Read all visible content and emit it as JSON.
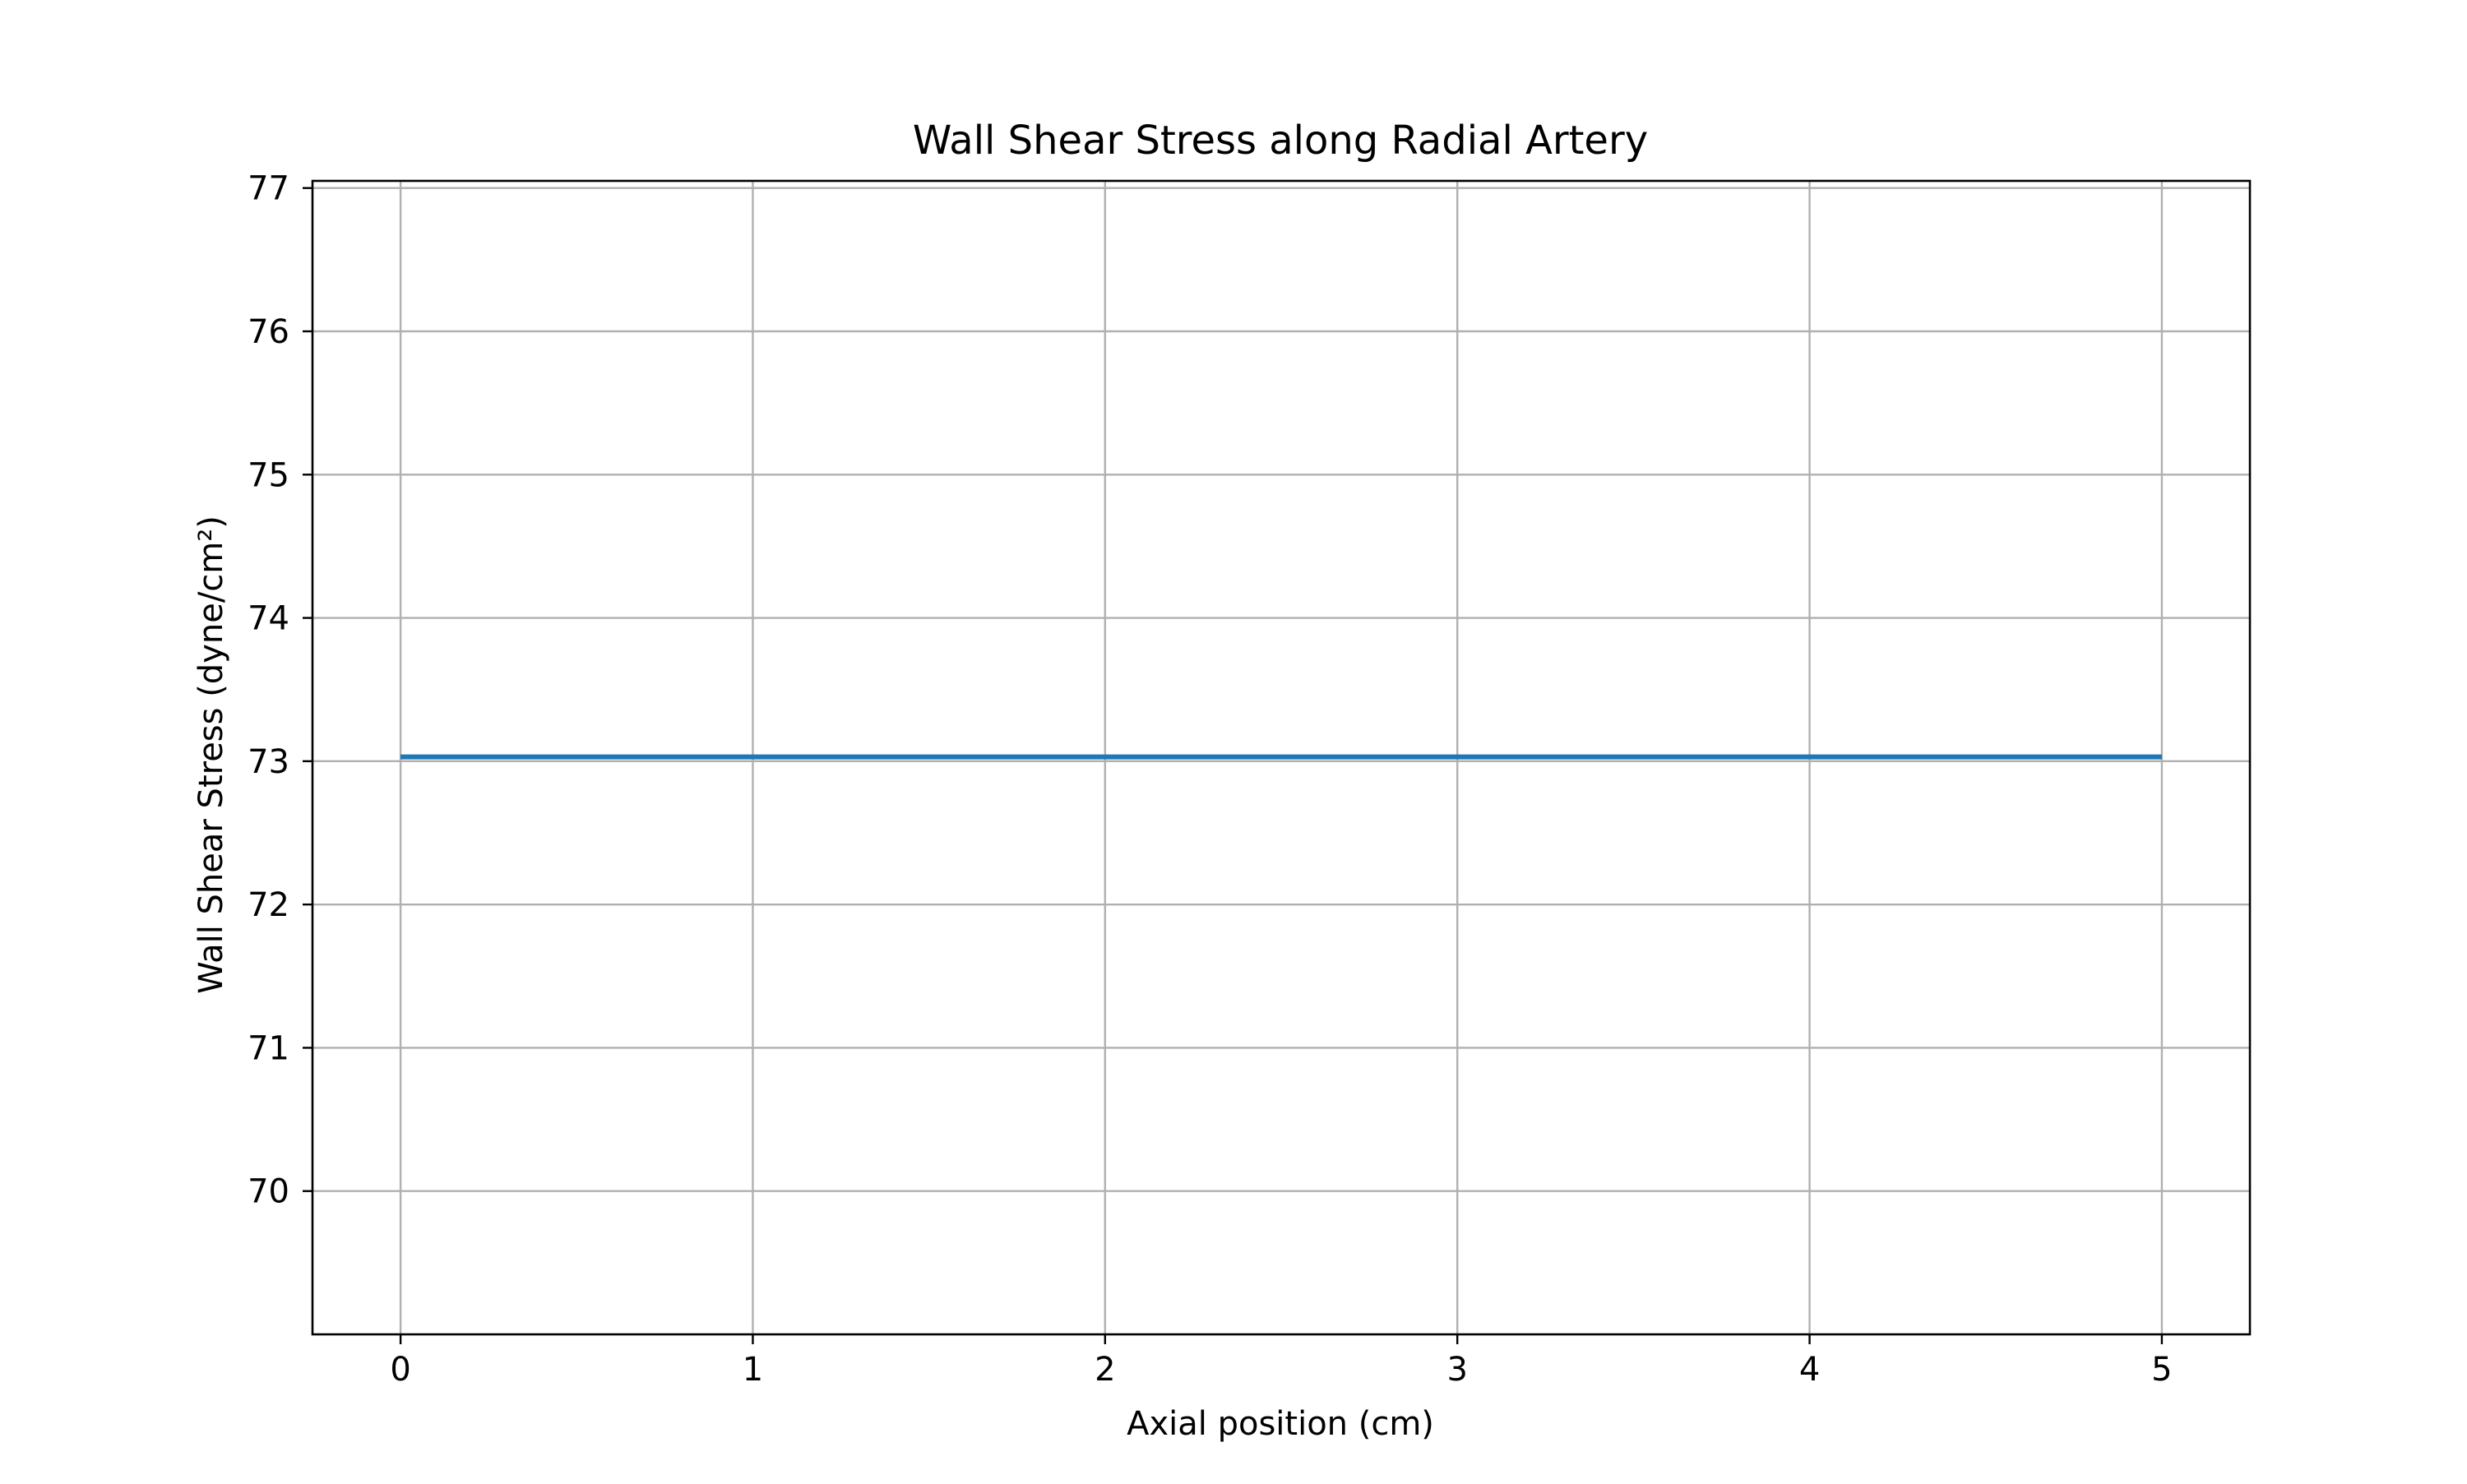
{
  "chart_data": {
    "type": "line",
    "title": "Wall Shear Stress along Radial Artery",
    "xlabel": "Axial position (cm)",
    "ylabel": "Wall Shear Stress (dyne/cm²)",
    "xlim": [
      -0.25,
      5.25
    ],
    "ylim": [
      69.0,
      77.05
    ],
    "xticks": [
      0,
      1,
      2,
      3,
      4,
      5
    ],
    "yticks": [
      70,
      71,
      72,
      73,
      74,
      75,
      76,
      77
    ],
    "grid": true,
    "series": [
      {
        "color": "#1f77b4",
        "x": [
          0,
          1,
          2,
          3,
          4,
          5
        ],
        "y": [
          73.03,
          73.03,
          73.03,
          73.03,
          73.03,
          73.03
        ]
      }
    ]
  }
}
